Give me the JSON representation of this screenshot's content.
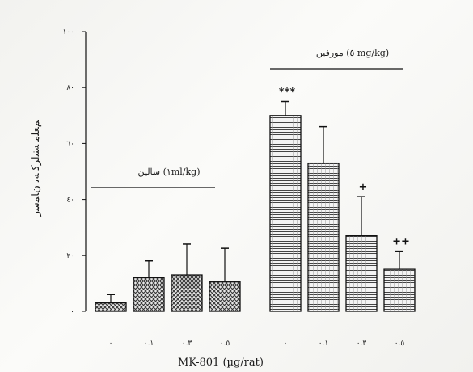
{
  "chart_data": {
    "type": "bar",
    "xlabel": "MK-801 (µg/rat)",
    "ylabel": "ﻢﻌﻠﻣ ﻪﻨﻳﺍﺮﻛ ﻪﺑ ﻥﺎﻤﺳﺭ",
    "ylim": [
      0,
      100
    ],
    "yticks": [
      0,
      20,
      40,
      60,
      80,
      100
    ],
    "ytick_labels": [
      "٠",
      "٢٠",
      "٤٠",
      "٦٠",
      "٨٠",
      "١٠٠"
    ],
    "grid": false,
    "groups": [
      {
        "caption": "ﺳﺎﻟﯿﻦ (١ml/kg)",
        "fill_pattern": "crosshatch",
        "bars": [
          {
            "x_label": "٠",
            "value": 3,
            "error": 3,
            "sig": ""
          },
          {
            "x_label": "٠.١",
            "value": 12,
            "error": 6,
            "sig": ""
          },
          {
            "x_label": "٠.٣",
            "value": 13,
            "error": 11,
            "sig": ""
          },
          {
            "x_label": "٠.٥",
            "value": 10.5,
            "error": 12,
            "sig": ""
          }
        ]
      },
      {
        "caption": "ﻣﻮﺭﻓﯿﻦ (٥ mg/kg)",
        "fill_pattern": "horizontal-lines",
        "bars": [
          {
            "x_label": "٠",
            "value": 70,
            "error": 5,
            "sig": "***"
          },
          {
            "x_label": "٠.١",
            "value": 53,
            "error": 13,
            "sig": ""
          },
          {
            "x_label": "٠.٣",
            "value": 27,
            "error": 14,
            "sig": "+"
          },
          {
            "x_label": "٠.٥",
            "value": 15,
            "error": 6.5,
            "sig": "++"
          }
        ]
      }
    ]
  },
  "colors": {
    "ink": "#111111",
    "paper": "#f4f4f1"
  }
}
